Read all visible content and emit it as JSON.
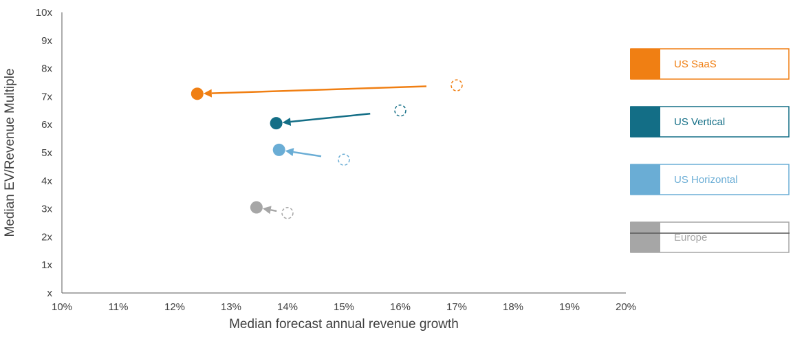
{
  "chart_data": {
    "type": "scatter",
    "xlabel": "Median forecast annual revenue growth",
    "ylabel": "Median EV/Revenue Multiple",
    "xlim": [
      0.1,
      0.2
    ],
    "ylim": [
      0,
      10
    ],
    "x_ticks": [
      "10%",
      "11%",
      "12%",
      "13%",
      "14%",
      "15%",
      "16%",
      "17%",
      "18%",
      "19%",
      "20%"
    ],
    "y_ticks": [
      "x",
      "1x",
      "2x",
      "3x",
      "4x",
      "5x",
      "6x",
      "7x",
      "8x",
      "9x",
      "10x"
    ],
    "grid": false,
    "legend_position": "right",
    "series": [
      {
        "name": "US SaaS",
        "color": "#F07F13",
        "previous": {
          "x": 0.17,
          "y": 7.4
        },
        "current": {
          "x": 0.124,
          "y": 7.1
        }
      },
      {
        "name": "US Vertical",
        "color": "#136E86",
        "previous": {
          "x": 0.16,
          "y": 6.5
        },
        "current": {
          "x": 0.138,
          "y": 6.05
        }
      },
      {
        "name": "US Horizontal",
        "color": "#6AADD5",
        "previous": {
          "x": 0.15,
          "y": 4.75
        },
        "current": {
          "x": 0.1385,
          "y": 5.1
        }
      },
      {
        "name": "Europe",
        "color": "#A6A6A6",
        "previous": {
          "x": 0.14,
          "y": 2.85
        },
        "current": {
          "x": 0.1345,
          "y": 3.05
        }
      }
    ]
  }
}
